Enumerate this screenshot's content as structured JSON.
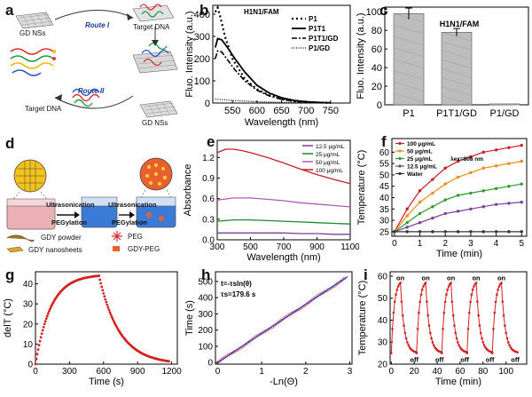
{
  "panels": {
    "a": {
      "label": "a",
      "text": {
        "gd_nss_1": "GD NSs",
        "target_dna_1": "Target DNA",
        "route1": "Route I",
        "route2": "Route II",
        "target_dna_2": "Target DNA",
        "gd_nss_2": "GD NSs"
      }
    },
    "b": {
      "label": "b",
      "type": "line",
      "title": "H1N1/FAM",
      "xlabel": "Wavelength (nm)",
      "ylabel": "Fluo. Intensity (a.u.)",
      "xlim": [
        510,
        790
      ],
      "ylim": [
        0,
        440
      ],
      "xticks": [
        550,
        600,
        650,
        700,
        750
      ],
      "yticks": [
        0,
        100,
        200,
        300,
        400
      ],
      "series": [
        {
          "name": "P1",
          "dash": "2,3",
          "width": 2.2,
          "x": [
            515,
            520,
            525,
            535,
            550,
            575,
            600,
            625,
            650,
            675,
            700,
            725,
            750
          ],
          "y": [
            410,
            430,
            390,
            300,
            200,
            110,
            62,
            35,
            18,
            9,
            4,
            2,
            1
          ]
        },
        {
          "name": "P1T1",
          "dash": "",
          "width": 1.8,
          "x": [
            515,
            520,
            528,
            540,
            555,
            575,
            600,
            625,
            650,
            675,
            700,
            725,
            750
          ],
          "y": [
            250,
            290,
            285,
            250,
            200,
            140,
            80,
            45,
            24,
            12,
            6,
            3,
            1
          ]
        },
        {
          "name": "P1T1/GD",
          "dash": "6,2,2,2",
          "width": 1.6,
          "x": [
            515,
            520,
            528,
            540,
            555,
            575,
            600,
            625,
            650,
            675,
            700,
            725,
            750
          ],
          "y": [
            200,
            235,
            230,
            195,
            150,
            100,
            58,
            32,
            17,
            8,
            4,
            2,
            1
          ]
        },
        {
          "name": "P1/GD",
          "dash": "1,1.5",
          "width": 1.2,
          "x": [
            515,
            525,
            550,
            600,
            650,
            700,
            750
          ],
          "y": [
            18,
            16,
            12,
            6,
            3,
            2,
            1
          ]
        }
      ]
    },
    "c": {
      "label": "c",
      "type": "bar",
      "title": "H1N1/FAM",
      "ylabel": "Fluo. Intensity (a.u.)",
      "ylim": [
        0,
        105
      ],
      "yticks": [
        0,
        20,
        40,
        60,
        80,
        100
      ],
      "categories": [
        "P1",
        "P1T1/GD",
        "P1/GD"
      ],
      "values": [
        98,
        78,
        1
      ],
      "errors": [
        6,
        4,
        0
      ]
    },
    "d": {
      "label": "d",
      "text": {
        "ultra1": "Ultrasonication",
        "peg1": "PEGylation",
        "ultra2": "Ultrasonication",
        "peg2": "PEGylation",
        "gdy_powder": "GDY powder",
        "gdy_nanosheets": "GDY nanosheets",
        "peg": "PEG",
        "gdy_peg": "GDY-PEG"
      }
    },
    "e": {
      "label": "e",
      "type": "line",
      "xlabel": "Wavelength (nm)",
      "ylabel": "Absorbance",
      "xlim": [
        300,
        1100
      ],
      "ylim": [
        0,
        1.45
      ],
      "xticks": [
        300,
        500,
        700,
        900,
        1100
      ],
      "yticks": [
        0.0,
        0.3,
        0.6,
        0.9,
        1.2
      ],
      "series": [
        {
          "name": "12.5 μg/mL",
          "color": "#7a3f9b",
          "x": [
            300,
            400,
            500,
            600,
            700,
            800,
            900,
            1000,
            1100
          ],
          "y": [
            0.1,
            0.1,
            0.1,
            0.1,
            0.1,
            0.09,
            0.09,
            0.08,
            0.08
          ]
        },
        {
          "name": "25 μg/mL",
          "color": "#1a8c2e",
          "x": [
            300,
            400,
            500,
            600,
            700,
            800,
            900,
            1000,
            1100
          ],
          "y": [
            0.27,
            0.29,
            0.29,
            0.28,
            0.27,
            0.26,
            0.25,
            0.24,
            0.23
          ]
        },
        {
          "name": "50 μg/mL",
          "color": "#b05ab8",
          "x": [
            300,
            400,
            500,
            600,
            700,
            800,
            900,
            1000,
            1100
          ],
          "y": [
            0.58,
            0.61,
            0.61,
            0.59,
            0.57,
            0.54,
            0.52,
            0.5,
            0.48
          ]
        },
        {
          "name": "100 μg/mL",
          "color": "#c81e2a",
          "x": [
            300,
            350,
            400,
            450,
            500,
            600,
            700,
            800,
            900,
            1000,
            1100
          ],
          "y": [
            1.27,
            1.32,
            1.32,
            1.3,
            1.27,
            1.2,
            1.12,
            1.03,
            0.95,
            0.88,
            0.82
          ]
        }
      ]
    },
    "f": {
      "label": "f",
      "type": "line",
      "xlabel": "Time (min)",
      "ylabel": "Temperature (°C)",
      "annotation": "λex=808 nm",
      "xlim": [
        -0.1,
        5.2
      ],
      "ylim": [
        23,
        66
      ],
      "xticks": [
        0,
        1,
        2,
        3,
        4,
        5
      ],
      "yticks": [
        25,
        30,
        35,
        40,
        45,
        50,
        55,
        60
      ],
      "x": [
        0,
        0.5,
        1,
        1.5,
        2,
        2.5,
        3,
        3.5,
        4,
        4.5,
        5
      ],
      "series": [
        {
          "name": "100 μg/mL",
          "color": "#c81e2a",
          "y": [
            25,
            35,
            43,
            48,
            53,
            56,
            58,
            60,
            61,
            62,
            63
          ]
        },
        {
          "name": "50 μg/mL",
          "color": "#f08a1c",
          "y": [
            25,
            32,
            38,
            42,
            46,
            49,
            51,
            53,
            54,
            55,
            56
          ]
        },
        {
          "name": "25 μg/mL",
          "color": "#2e9a2e",
          "y": [
            25,
            29,
            33,
            36,
            39,
            41,
            42,
            43,
            44,
            45,
            46
          ]
        },
        {
          "name": "12.5 μg/mL",
          "color": "#7a3f9b",
          "y": [
            25,
            27,
            29,
            31,
            33,
            34,
            35,
            36,
            37,
            37.5,
            38
          ]
        },
        {
          "name": "Water",
          "color": "#333333",
          "y": [
            25,
            25,
            25,
            25,
            25,
            25,
            25,
            25,
            25,
            25,
            25
          ]
        }
      ]
    },
    "g": {
      "label": "g",
      "type": "scatter",
      "xlabel": "Time (s)",
      "ylabel": "delT (°C)",
      "xlim": [
        0,
        1250
      ],
      "ylim": [
        0,
        46
      ],
      "xticks": [
        0,
        300,
        600,
        900,
        1200
      ],
      "yticks": [
        0,
        10,
        20,
        30,
        40
      ],
      "heating": {
        "tmax": 560,
        "dTmax": 44,
        "tau": 135
      },
      "cooling": {
        "tstart": 560,
        "tend": 1180,
        "tau": 180
      }
    },
    "h": {
      "label": "h",
      "type": "scatter",
      "xlabel": "-Ln(Θ)",
      "ylabel": "Time (s)",
      "formula_line1": "t=-τsln(θ)",
      "formula_line2": "τs=179.6 s",
      "xlim": [
        -0.05,
        3.05
      ],
      "ylim": [
        -10,
        560
      ],
      "xticks": [
        0,
        1,
        2,
        3
      ],
      "yticks": [
        0,
        100,
        200,
        300,
        400,
        500
      ],
      "fit": {
        "slope": 179.6,
        "intercept": 0
      }
    },
    "i": {
      "label": "i",
      "type": "line",
      "xlabel": "Time (min)",
      "ylabel": "Temperature (°C)",
      "xlim": [
        -1,
        118
      ],
      "ylim": [
        20,
        62
      ],
      "xticks": [
        0,
        20,
        40,
        60,
        80,
        100
      ],
      "yticks": [
        20,
        30,
        40,
        50,
        60
      ],
      "cycles": 5,
      "period": 22,
      "on_min": 8,
      "peak": 57,
      "base": 25,
      "on_labels": [
        "on",
        "on",
        "on",
        "on",
        "on"
      ],
      "off_labels": [
        "off",
        "off",
        "off",
        "off",
        "off"
      ]
    }
  },
  "colors": {
    "bar_fill": "#bdbdbd",
    "red_marker": "#d42020",
    "blue_fit": "#1f3fd6"
  }
}
